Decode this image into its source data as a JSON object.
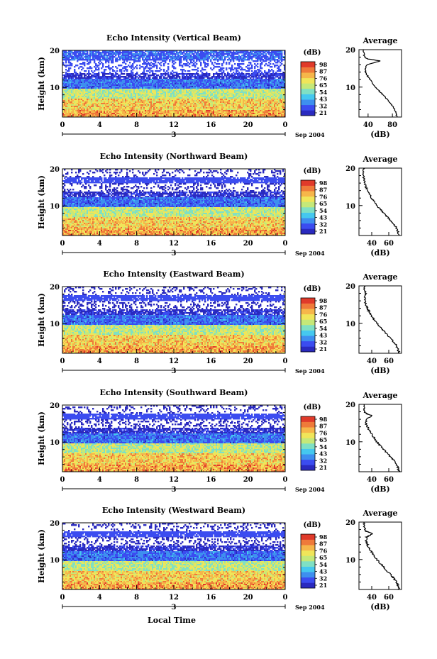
{
  "figure": {
    "xlabel_bottom": "Local Time",
    "date_label": "Sep 2004",
    "day_label": "3",
    "height_label": "Height (km)",
    "avg_title": "Average",
    "avg_unit": "(dB)",
    "cbar_unit": "(dB)",
    "colormap": [
      "#2a2abf",
      "#3b4cf0",
      "#3e8fef",
      "#45c8ef",
      "#7fe0c4",
      "#c5e879",
      "#f0e55a",
      "#f6b64a",
      "#ef7a3a",
      "#e03a2a"
    ]
  },
  "chart_data": [
    {
      "type": "heatmap",
      "title": "Echo Intensity (Vertical Beam)",
      "xlabel": "Local Time",
      "ylabel": "Height (km)",
      "xticks": [
        "0",
        "4",
        "8",
        "12",
        "16",
        "20",
        "0"
      ],
      "yticks": [
        "10",
        "20"
      ],
      "xlim": [
        0,
        24
      ],
      "ylim": [
        2,
        20
      ],
      "colorbar": {
        "unit": "(dB)",
        "ticks": [
          "98",
          "87",
          "76",
          "65",
          "54",
          "43",
          "32",
          "21"
        ]
      },
      "average_profile": {
        "title": "Average",
        "xlabel": "(dB)",
        "xticks": [
          "40",
          "80"
        ],
        "yticks": [
          "10",
          "20"
        ],
        "xlim": [
          25,
          95
        ],
        "height_km": [
          2,
          3,
          4,
          5,
          6,
          7,
          8,
          9,
          10,
          11,
          12,
          13,
          14,
          15,
          16,
          17,
          17.5,
          18,
          19,
          20
        ],
        "value_db": [
          88,
          86,
          84,
          80,
          75,
          70,
          64,
          58,
          52,
          47,
          43,
          39,
          36,
          35,
          38,
          60,
          40,
          34,
          33,
          33
        ]
      }
    },
    {
      "type": "heatmap",
      "title": "Echo Intensity (Northward Beam)",
      "xlabel": "Local Time",
      "ylabel": "Height (km)",
      "xticks": [
        "0",
        "4",
        "8",
        "12",
        "16",
        "20",
        "0"
      ],
      "yticks": [
        "10",
        "20"
      ],
      "xlim": [
        0,
        24
      ],
      "ylim": [
        2,
        20
      ],
      "colorbar": {
        "unit": "(dB)",
        "ticks": [
          "98",
          "87",
          "76",
          "65",
          "54",
          "43",
          "32",
          "21"
        ]
      },
      "average_profile": {
        "title": "Average",
        "xlabel": "(dB)",
        "xticks": [
          "40",
          "60"
        ],
        "yticks": [
          "10",
          "20"
        ],
        "xlim": [
          25,
          75
        ],
        "height_km": [
          2,
          3,
          4,
          5,
          6,
          7,
          8,
          9,
          10,
          11,
          12,
          13,
          14,
          15,
          16,
          17,
          18,
          19,
          20
        ],
        "value_db": [
          72,
          71,
          69,
          66,
          62,
          58,
          54,
          50,
          46,
          43,
          40,
          37,
          35,
          33,
          32,
          31,
          30,
          30,
          30
        ]
      }
    },
    {
      "type": "heatmap",
      "title": "Echo Intensity (Eastward Beam)",
      "xlabel": "Local Time",
      "ylabel": "Height (km)",
      "xticks": [
        "0",
        "4",
        "8",
        "12",
        "16",
        "20",
        "0"
      ],
      "yticks": [
        "10",
        "20"
      ],
      "xlim": [
        0,
        24
      ],
      "ylim": [
        2,
        20
      ],
      "colorbar": {
        "unit": "(dB)",
        "ticks": [
          "98",
          "87",
          "76",
          "65",
          "54",
          "43",
          "32",
          "21"
        ]
      },
      "average_profile": {
        "title": "Average",
        "xlabel": "(dB)",
        "xticks": [
          "40",
          "60"
        ],
        "yticks": [
          "10",
          "20"
        ],
        "xlim": [
          25,
          75
        ],
        "height_km": [
          2,
          3,
          4,
          5,
          6,
          7,
          8,
          9,
          10,
          11,
          12,
          13,
          14,
          15,
          16,
          17,
          18,
          19,
          20
        ],
        "value_db": [
          72,
          71,
          69,
          66,
          62,
          58,
          54,
          50,
          46,
          43,
          40,
          37,
          35,
          33,
          32,
          32,
          33,
          31,
          31
        ]
      }
    },
    {
      "type": "heatmap",
      "title": "Echo Intensity (Southward Beam)",
      "xlabel": "Local Time",
      "ylabel": "Height (km)",
      "xticks": [
        "0",
        "4",
        "8",
        "12",
        "16",
        "20",
        "0"
      ],
      "yticks": [
        "10",
        "20"
      ],
      "xlim": [
        0,
        24
      ],
      "ylim": [
        2,
        20
      ],
      "colorbar": {
        "unit": "(dB)",
        "ticks": [
          "98",
          "87",
          "76",
          "65",
          "54",
          "43",
          "32",
          "21"
        ]
      },
      "average_profile": {
        "title": "Average",
        "xlabel": "(dB)",
        "xticks": [
          "40",
          "60"
        ],
        "yticks": [
          "10",
          "20"
        ],
        "xlim": [
          25,
          75
        ],
        "height_km": [
          2,
          3,
          4,
          5,
          6,
          7,
          8,
          9,
          10,
          11,
          12,
          13,
          14,
          15,
          16,
          17,
          17.5,
          18,
          19,
          20
        ],
        "value_db": [
          72,
          71,
          69,
          66,
          62,
          58,
          54,
          50,
          46,
          43,
          40,
          37,
          35,
          33,
          34,
          40,
          34,
          32,
          31,
          31
        ]
      }
    },
    {
      "type": "heatmap",
      "title": "Echo Intensity (Westward Beam)",
      "xlabel": "Local Time",
      "ylabel": "Height (km)",
      "xticks": [
        "0",
        "4",
        "8",
        "12",
        "16",
        "20",
        "0"
      ],
      "yticks": [
        "10",
        "20"
      ],
      "xlim": [
        0,
        24
      ],
      "ylim": [
        2,
        20
      ],
      "colorbar": {
        "unit": "(dB)",
        "ticks": [
          "98",
          "87",
          "76",
          "65",
          "54",
          "43",
          "32",
          "21"
        ]
      },
      "average_profile": {
        "title": "Average",
        "xlabel": "(dB)",
        "xticks": [
          "40",
          "60"
        ],
        "yticks": [
          "10",
          "20"
        ],
        "xlim": [
          25,
          75
        ],
        "height_km": [
          2,
          3,
          4,
          5,
          6,
          7,
          8,
          9,
          10,
          11,
          12,
          13,
          14,
          15,
          16,
          17,
          17.5,
          18,
          19,
          20
        ],
        "value_db": [
          72,
          71,
          69,
          66,
          62,
          58,
          54,
          50,
          46,
          43,
          40,
          37,
          35,
          33,
          34,
          41,
          34,
          32,
          31,
          31
        ]
      }
    }
  ]
}
